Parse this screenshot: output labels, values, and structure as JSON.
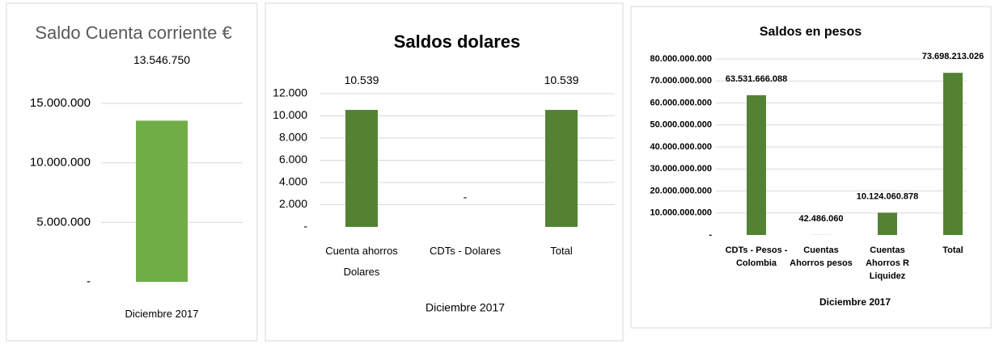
{
  "chart_data": [
    {
      "type": "bar",
      "title": "Saldo Cuenta corriente €",
      "categories": [
        "Diciembre 2017"
      ],
      "values": [
        13546750
      ],
      "value_labels": [
        "13.546.750"
      ],
      "color": "#70ad47",
      "ylim": [
        0,
        15000000
      ],
      "yticks": [
        {
          "value": 0,
          "label": "-"
        },
        {
          "value": 5000000,
          "label": "5.000.000"
        },
        {
          "value": 10000000,
          "label": "10.000.000"
        },
        {
          "value": 15000000,
          "label": "15.000.000"
        }
      ],
      "grid": true
    },
    {
      "type": "bar",
      "title": "Saldos dolares",
      "x_label": "Diciembre  2017",
      "categories": [
        "Cuenta ahorros Dolares",
        "CDTs - Dolares",
        "Total"
      ],
      "values": [
        10539,
        0,
        10539
      ],
      "value_labels": [
        "10.539",
        "-",
        "10.539"
      ],
      "color": "#548235",
      "ylim": [
        0,
        12000
      ],
      "yticks": [
        {
          "value": 0,
          "label": "-"
        },
        {
          "value": 2000,
          "label": "2.000"
        },
        {
          "value": 4000,
          "label": "4.000"
        },
        {
          "value": 6000,
          "label": "6.000"
        },
        {
          "value": 8000,
          "label": "8.000"
        },
        {
          "value": 10000,
          "label": "10.000"
        },
        {
          "value": 12000,
          "label": "12.000"
        }
      ],
      "grid": true
    },
    {
      "type": "bar",
      "title": "Saldos en pesos",
      "x_label": "Diciembre  2017",
      "categories": [
        "CDTs - Pesos - Colombia",
        "Cuentas Ahorros pesos",
        "Cuentas Ahorros R Liquidez",
        "Total"
      ],
      "values": [
        63531666088,
        42486060,
        10124060878,
        73698213026
      ],
      "value_labels": [
        "63.531.666.088",
        "42.486.060",
        "10.124.060.878",
        "73.698.213.026"
      ],
      "color": "#548235",
      "ylim": [
        0,
        80000000000
      ],
      "yticks": [
        {
          "value": 0,
          "label": "-"
        },
        {
          "value": 10000000000,
          "label": "10.000.000.000"
        },
        {
          "value": 20000000000,
          "label": "20.000.000.000"
        },
        {
          "value": 30000000000,
          "label": "30.000.000.000"
        },
        {
          "value": 40000000000,
          "label": "40.000.000.000"
        },
        {
          "value": 50000000000,
          "label": "50.000.000.000"
        },
        {
          "value": 60000000000,
          "label": "60.000.000.000"
        },
        {
          "value": 70000000000,
          "label": "70.000.000.000"
        },
        {
          "value": 80000000000,
          "label": "80.000.000.000"
        }
      ],
      "grid": true
    }
  ]
}
